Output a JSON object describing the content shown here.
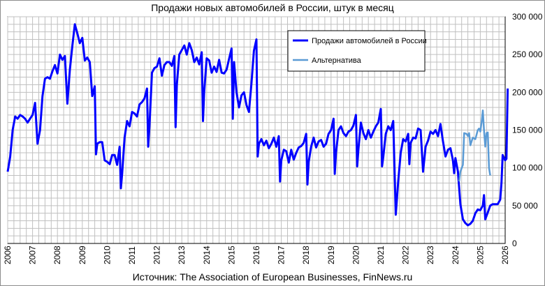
{
  "chart_data": {
    "type": "line",
    "title": "Продажи новых автомобилей в России, штук в месяц",
    "source": "Источник: The Association of European Businesses, FinNews.ru",
    "xlim": [
      2006,
      2026
    ],
    "ylim": [
      0,
      300000
    ],
    "x_ticks": [
      "2006",
      "2007",
      "2008",
      "2009",
      "2010",
      "2011",
      "2012",
      "2013",
      "2014",
      "2015",
      "2016",
      "2017",
      "2018",
      "2019",
      "2020",
      "2021",
      "2022",
      "2023",
      "2024",
      "2025",
      "2026"
    ],
    "y_ticks": [
      "0",
      "50 000",
      "100 000",
      "150 000",
      "200 000",
      "250 000",
      "300 000"
    ],
    "y_tick_values": [
      0,
      50000,
      100000,
      150000,
      200000,
      250000,
      300000
    ],
    "grid": true,
    "legend_position": "top-right",
    "colors": {
      "main": "#0000ff",
      "alt": "#5b9bd5",
      "grid": "#c0c0c0"
    },
    "series": [
      {
        "name": "Продажи автомобилей в России",
        "color": "#0000ff",
        "points": [
          [
            2006.0,
            95000
          ],
          [
            2006.1,
            115000
          ],
          [
            2006.2,
            150000
          ],
          [
            2006.3,
            168000
          ],
          [
            2006.4,
            165000
          ],
          [
            2006.5,
            170000
          ],
          [
            2006.6,
            168000
          ],
          [
            2006.7,
            165000
          ],
          [
            2006.8,
            160000
          ],
          [
            2006.9,
            165000
          ],
          [
            2007.0,
            170000
          ],
          [
            2007.1,
            186000
          ],
          [
            2007.2,
            132000
          ],
          [
            2007.3,
            150000
          ],
          [
            2007.4,
            195000
          ],
          [
            2007.5,
            218000
          ],
          [
            2007.6,
            220000
          ],
          [
            2007.7,
            218000
          ],
          [
            2007.8,
            228000
          ],
          [
            2007.9,
            236000
          ],
          [
            2008.0,
            225000
          ],
          [
            2008.1,
            250000
          ],
          [
            2008.2,
            243000
          ],
          [
            2008.3,
            248000
          ],
          [
            2008.4,
            185000
          ],
          [
            2008.5,
            230000
          ],
          [
            2008.6,
            262000
          ],
          [
            2008.7,
            290000
          ],
          [
            2008.8,
            278000
          ],
          [
            2008.9,
            265000
          ],
          [
            2009.0,
            272000
          ],
          [
            2009.1,
            242000
          ],
          [
            2009.2,
            246000
          ],
          [
            2009.3,
            240000
          ],
          [
            2009.4,
            195000
          ],
          [
            2009.5,
            208000
          ],
          [
            2009.55,
            118000
          ],
          [
            2009.6,
            132000
          ],
          [
            2009.7,
            134000
          ],
          [
            2009.8,
            134000
          ],
          [
            2009.9,
            110000
          ],
          [
            2010.0,
            108000
          ],
          [
            2010.1,
            105000
          ],
          [
            2010.2,
            117000
          ],
          [
            2010.3,
            117000
          ],
          [
            2010.4,
            104000
          ],
          [
            2010.5,
            128000
          ],
          [
            2010.55,
            73000
          ],
          [
            2010.6,
            92000
          ],
          [
            2010.7,
            140000
          ],
          [
            2010.8,
            162000
          ],
          [
            2010.9,
            155000
          ],
          [
            2011.0,
            174000
          ],
          [
            2011.1,
            172000
          ],
          [
            2011.2,
            168000
          ],
          [
            2011.3,
            184000
          ],
          [
            2011.4,
            187000
          ],
          [
            2011.5,
            192000
          ],
          [
            2011.6,
            205000
          ],
          [
            2011.65,
            128000
          ],
          [
            2011.7,
            155000
          ],
          [
            2011.8,
            226000
          ],
          [
            2011.9,
            232000
          ],
          [
            2012.0,
            234000
          ],
          [
            2012.1,
            245000
          ],
          [
            2012.2,
            222000
          ],
          [
            2012.3,
            236000
          ],
          [
            2012.4,
            240000
          ],
          [
            2012.5,
            240000
          ],
          [
            2012.6,
            235000
          ],
          [
            2012.7,
            248000
          ],
          [
            2012.75,
            154000
          ],
          [
            2012.8,
            210000
          ],
          [
            2012.9,
            250000
          ],
          [
            2013.0,
            256000
          ],
          [
            2013.1,
            262000
          ],
          [
            2013.2,
            250000
          ],
          [
            2013.3,
            265000
          ],
          [
            2013.4,
            256000
          ],
          [
            2013.5,
            240000
          ],
          [
            2013.6,
            246000
          ],
          [
            2013.7,
            237000
          ],
          [
            2013.8,
            253000
          ],
          [
            2013.85,
            162000
          ],
          [
            2013.9,
            200000
          ],
          [
            2014.0,
            245000
          ],
          [
            2014.1,
            242000
          ],
          [
            2014.2,
            226000
          ],
          [
            2014.3,
            234000
          ],
          [
            2014.4,
            227000
          ],
          [
            2014.5,
            243000
          ],
          [
            2014.6,
            226000
          ],
          [
            2014.7,
            225000
          ],
          [
            2014.8,
            230000
          ],
          [
            2014.9,
            244000
          ],
          [
            2015.0,
            258000
          ],
          [
            2015.05,
            165000
          ],
          [
            2015.1,
            240000
          ],
          [
            2015.2,
            200000
          ],
          [
            2015.3,
            180000
          ],
          [
            2015.4,
            196000
          ],
          [
            2015.5,
            200000
          ],
          [
            2015.6,
            183000
          ],
          [
            2015.7,
            174000
          ],
          [
            2015.8,
            212000
          ],
          [
            2015.9,
            255000
          ],
          [
            2016.0,
            270000
          ],
          [
            2016.05,
            115000
          ],
          [
            2016.1,
            132000
          ],
          [
            2016.2,
            138000
          ],
          [
            2016.3,
            130000
          ],
          [
            2016.4,
            136000
          ],
          [
            2016.5,
            126000
          ],
          [
            2016.6,
            132000
          ],
          [
            2016.7,
            140000
          ],
          [
            2016.8,
            128000
          ],
          [
            2016.9,
            142000
          ],
          [
            2016.95,
            82000
          ],
          [
            2017.0,
            110000
          ],
          [
            2017.1,
            124000
          ],
          [
            2017.2,
            122000
          ],
          [
            2017.3,
            107000
          ],
          [
            2017.4,
            124000
          ],
          [
            2017.5,
            111000
          ],
          [
            2017.6,
            120000
          ],
          [
            2017.7,
            127000
          ],
          [
            2017.8,
            129000
          ],
          [
            2017.9,
            133000
          ],
          [
            2018.0,
            145000
          ],
          [
            2018.05,
            78000
          ],
          [
            2018.1,
            108000
          ],
          [
            2018.2,
            128000
          ],
          [
            2018.3,
            140000
          ],
          [
            2018.4,
            127000
          ],
          [
            2018.5,
            135000
          ],
          [
            2018.6,
            137000
          ],
          [
            2018.7,
            128000
          ],
          [
            2018.8,
            132000
          ],
          [
            2018.9,
            145000
          ],
          [
            2019.0,
            150000
          ],
          [
            2019.1,
            165000
          ],
          [
            2019.15,
            92000
          ],
          [
            2019.2,
            120000
          ],
          [
            2019.3,
            150000
          ],
          [
            2019.4,
            155000
          ],
          [
            2019.5,
            146000
          ],
          [
            2019.6,
            142000
          ],
          [
            2019.7,
            148000
          ],
          [
            2019.8,
            150000
          ],
          [
            2019.9,
            156000
          ],
          [
            2020.0,
            170000
          ],
          [
            2020.05,
            102000
          ],
          [
            2020.1,
            125000
          ],
          [
            2020.2,
            160000
          ],
          [
            2020.3,
            146000
          ],
          [
            2020.4,
            138000
          ],
          [
            2020.5,
            150000
          ],
          [
            2020.6,
            140000
          ],
          [
            2020.7,
            148000
          ],
          [
            2020.8,
            155000
          ],
          [
            2020.9,
            160000
          ],
          [
            2021.0,
            178000
          ],
          [
            2021.05,
            102000
          ],
          [
            2021.1,
            115000
          ],
          [
            2021.2,
            145000
          ],
          [
            2021.3,
            155000
          ],
          [
            2021.4,
            150000
          ],
          [
            2021.5,
            162000
          ],
          [
            2021.6,
            38000
          ],
          [
            2021.7,
            82000
          ],
          [
            2021.8,
            120000
          ],
          [
            2021.9,
            138000
          ],
          [
            2022.0,
            135000
          ],
          [
            2022.1,
            145000
          ],
          [
            2022.15,
            105000
          ],
          [
            2022.2,
            133000
          ],
          [
            2022.3,
            140000
          ],
          [
            2022.4,
            139000
          ],
          [
            2022.5,
            152000
          ],
          [
            2022.6,
            150000
          ],
          [
            2022.7,
            95000
          ],
          [
            2022.8,
            128000
          ],
          [
            2022.9,
            136000
          ],
          [
            2023.0,
            148000
          ],
          [
            2023.1,
            145000
          ],
          [
            2023.2,
            150000
          ],
          [
            2023.3,
            142000
          ],
          [
            2023.4,
            158000
          ],
          [
            2023.5,
            135000
          ],
          [
            2023.6,
            115000
          ],
          [
            2023.7,
            124000
          ],
          [
            2023.8,
            126000
          ],
          [
            2023.9,
            110000
          ],
          [
            2023.95,
            93000
          ],
          [
            2024.0,
            113000
          ],
          [
            2024.1,
            95000
          ],
          [
            2024.2,
            52000
          ],
          [
            2024.3,
            32000
          ],
          [
            2024.4,
            27000
          ],
          [
            2024.5,
            24000
          ],
          [
            2024.6,
            26000
          ],
          [
            2024.7,
            30000
          ],
          [
            2024.8,
            40000
          ],
          [
            2024.9,
            45000
          ],
          [
            2025.0,
            44000
          ],
          [
            2025.1,
            50000
          ],
          [
            2025.15,
            64000
          ],
          [
            2025.2,
            32000
          ],
          [
            2025.3,
            41000
          ],
          [
            2025.4,
            50000
          ],
          [
            2025.5,
            52000
          ],
          [
            2025.6,
            52000
          ],
          [
            2025.7,
            52000
          ],
          [
            2025.8,
            58000
          ],
          [
            2025.85,
            80000
          ],
          [
            2025.9,
            117000
          ],
          [
            2026.0,
            110000
          ],
          [
            2026.05,
            112000
          ],
          [
            2026.1,
            205000
          ]
        ]
      },
      {
        "name": "Альтернатива",
        "color": "#5b9bd5",
        "points": [
          [
            2024.15,
            82000
          ],
          [
            2024.2,
            95000
          ],
          [
            2024.3,
            104000
          ],
          [
            2024.35,
            146000
          ],
          [
            2024.45,
            145000
          ],
          [
            2024.5,
            142000
          ],
          [
            2024.55,
            146000
          ],
          [
            2024.6,
            130000
          ],
          [
            2024.7,
            140000
          ],
          [
            2024.8,
            138000
          ],
          [
            2024.9,
            150000
          ],
          [
            2024.95,
            152000
          ],
          [
            2025.0,
            148000
          ],
          [
            2025.05,
            160000
          ],
          [
            2025.1,
            176000
          ],
          [
            2025.15,
            150000
          ],
          [
            2025.2,
            128000
          ],
          [
            2025.25,
            146000
          ],
          [
            2025.3,
            147000
          ],
          [
            2025.35,
            100000
          ],
          [
            2025.4,
            90000
          ]
        ]
      }
    ]
  }
}
